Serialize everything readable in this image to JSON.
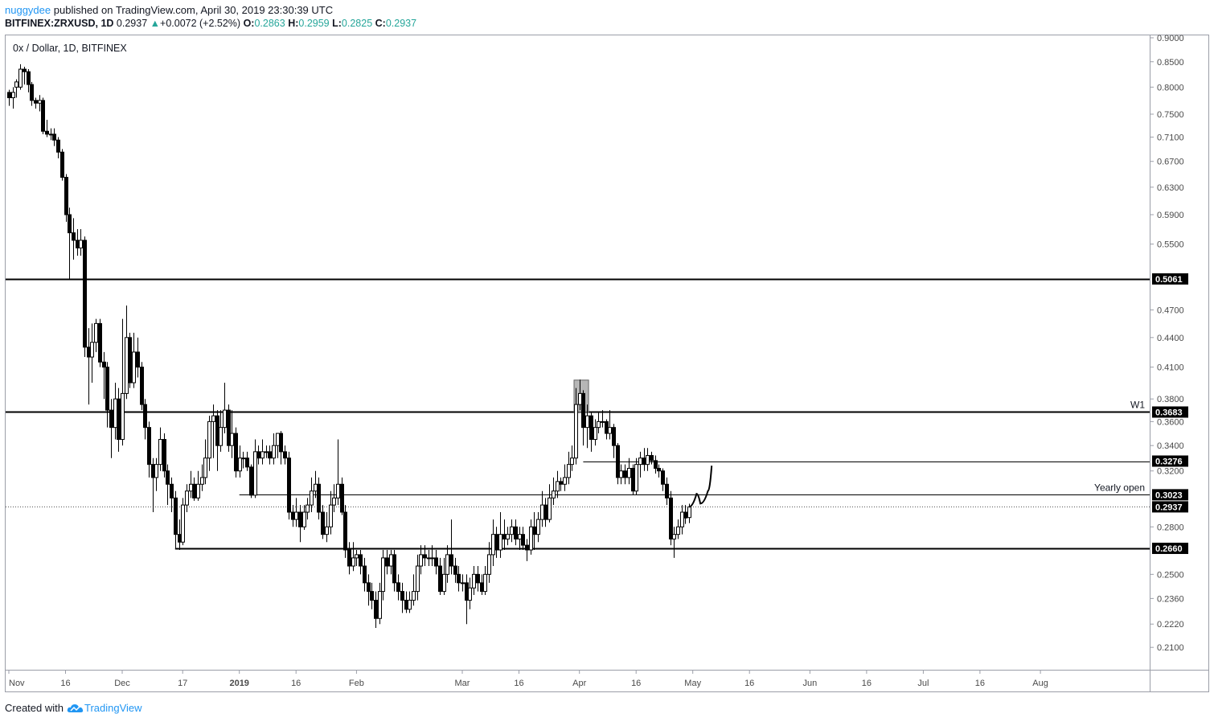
{
  "header": {
    "user": "nuggydee",
    "published_text": "published on TradingView.com, April 30, 2019 23:30:39 UTC",
    "symbol_line": "BITFINEX:ZRXUSD, 1D",
    "last": "0.2937",
    "change": "+0.0072 (+2.52%)",
    "o_label": "O:",
    "o_value": "0.2863",
    "h_label": "H:",
    "h_value": "0.2959",
    "l_label": "L:",
    "l_value": "0.2825",
    "c_label": "C:",
    "c_value": "0.2937"
  },
  "footer": {
    "created_with": "Created with",
    "brand": "TradingView"
  },
  "colors": {
    "line": "#000000",
    "grid": "#e0e3eb",
    "price_tag": "#000000",
    "highlight": "#9e9e9e",
    "brand": "#2196f3",
    "up": "#26a69a"
  },
  "chart_data": {
    "type": "candlestick",
    "title": "0x / Dollar, 1D, BITFINEX",
    "y_scale": "log",
    "y_range": [
      0.2045,
      0.9
    ],
    "y_ticks": [
      "0.9000",
      "0.8500",
      "0.8000",
      "0.7500",
      "0.7100",
      "0.6700",
      "0.6300",
      "0.5900",
      "0.5500",
      "0.4700",
      "0.4400",
      "0.4100",
      "0.3800",
      "0.3600",
      "0.3400",
      "0.3200",
      "0.2800",
      "0.2500",
      "0.2360",
      "0.2220",
      "0.2100"
    ],
    "x_ticks": [
      "Nov",
      "16",
      "Dec",
      "17",
      "2019",
      "16",
      "Feb",
      "Mar",
      "16",
      "Apr",
      "16",
      "May",
      "16",
      "Jun",
      "16",
      "Jul",
      "16",
      "Aug"
    ],
    "x_ticks_bold": [
      "2019"
    ],
    "x_range_days": [
      "2018-11-01",
      "2019-08-12"
    ],
    "levels": [
      {
        "value": 0.5061,
        "label": "0.5061",
        "style": "thick",
        "from_day": 0
      },
      {
        "value": 0.3683,
        "label": "0.3683",
        "style": "thick",
        "from_day": 0,
        "note": "W1"
      },
      {
        "value": 0.3276,
        "label": "0.3276",
        "style": "thin",
        "from_day": 152
      },
      {
        "value": 0.3023,
        "label": "0.3023",
        "style": "thin",
        "from_day": 61,
        "note": "Yearly open"
      },
      {
        "value": 0.2937,
        "label": "0.2937",
        "style": "dotted",
        "from_day": 0
      },
      {
        "value": 0.266,
        "label": "0.2660",
        "style": "thick",
        "from_day": 44
      }
    ],
    "highlight_box": {
      "day_from": 150,
      "day_to": 153,
      "low": 0.3683,
      "high": 0.3975
    },
    "projection": [
      [
        180,
        0.2937
      ],
      [
        182,
        0.303
      ],
      [
        183,
        0.296
      ],
      [
        185,
        0.305
      ],
      [
        186,
        0.324
      ]
    ],
    "candles": [
      [
        0,
        0.79,
        0.78,
        0.795,
        0.765
      ],
      [
        1,
        0.78,
        0.79,
        0.8,
        0.76
      ],
      [
        2,
        0.8,
        0.81,
        0.815,
        0.78
      ],
      [
        3,
        0.8,
        0.835,
        0.845,
        0.795
      ],
      [
        4,
        0.835,
        0.83,
        0.84,
        0.805
      ],
      [
        5,
        0.83,
        0.805,
        0.835,
        0.79
      ],
      [
        6,
        0.805,
        0.775,
        0.81,
        0.765
      ],
      [
        7,
        0.775,
        0.77,
        0.78,
        0.76
      ],
      [
        8,
        0.77,
        0.775,
        0.785,
        0.755
      ],
      [
        9,
        0.775,
        0.72,
        0.78,
        0.715
      ],
      [
        10,
        0.72,
        0.715,
        0.74,
        0.71
      ],
      [
        11,
        0.715,
        0.715,
        0.725,
        0.705
      ],
      [
        12,
        0.715,
        0.705,
        0.725,
        0.695
      ],
      [
        13,
        0.705,
        0.685,
        0.71,
        0.675
      ],
      [
        14,
        0.685,
        0.645,
        0.69,
        0.64
      ],
      [
        15,
        0.645,
        0.59,
        0.65,
        0.58
      ],
      [
        16,
        0.59,
        0.565,
        0.6,
        0.505
      ],
      [
        17,
        0.565,
        0.555,
        0.585,
        0.53
      ],
      [
        18,
        0.555,
        0.545,
        0.57,
        0.535
      ],
      [
        19,
        0.545,
        0.555,
        0.57,
        0.535
      ],
      [
        20,
        0.555,
        0.43,
        0.56,
        0.42
      ],
      [
        21,
        0.43,
        0.42,
        0.45,
        0.375
      ],
      [
        22,
        0.42,
        0.435,
        0.455,
        0.395
      ],
      [
        23,
        0.435,
        0.455,
        0.46,
        0.425
      ],
      [
        24,
        0.455,
        0.415,
        0.46,
        0.41
      ],
      [
        25,
        0.415,
        0.41,
        0.425,
        0.38
      ],
      [
        26,
        0.41,
        0.37,
        0.415,
        0.355
      ],
      [
        27,
        0.37,
        0.355,
        0.38,
        0.33
      ],
      [
        28,
        0.355,
        0.38,
        0.395,
        0.345
      ],
      [
        29,
        0.38,
        0.345,
        0.39,
        0.335
      ],
      [
        30,
        0.345,
        0.385,
        0.46,
        0.34
      ],
      [
        31,
        0.385,
        0.44,
        0.475,
        0.38
      ],
      [
        32,
        0.44,
        0.395,
        0.445,
        0.39
      ],
      [
        33,
        0.395,
        0.425,
        0.445,
        0.39
      ],
      [
        34,
        0.425,
        0.41,
        0.44,
        0.4
      ],
      [
        35,
        0.41,
        0.375,
        0.415,
        0.37
      ],
      [
        36,
        0.375,
        0.355,
        0.38,
        0.345
      ],
      [
        37,
        0.355,
        0.325,
        0.36,
        0.315
      ],
      [
        38,
        0.325,
        0.315,
        0.33,
        0.29
      ],
      [
        39,
        0.315,
        0.325,
        0.33,
        0.305
      ],
      [
        40,
        0.325,
        0.345,
        0.355,
        0.32
      ],
      [
        41,
        0.345,
        0.32,
        0.35,
        0.315
      ],
      [
        42,
        0.32,
        0.31,
        0.325,
        0.295
      ],
      [
        43,
        0.31,
        0.3,
        0.315,
        0.29
      ],
      [
        44,
        0.3,
        0.275,
        0.305,
        0.266
      ],
      [
        45,
        0.275,
        0.27,
        0.285,
        0.265
      ],
      [
        46,
        0.27,
        0.295,
        0.3,
        0.268
      ],
      [
        47,
        0.295,
        0.305,
        0.31,
        0.29
      ],
      [
        48,
        0.305,
        0.31,
        0.32,
        0.3
      ],
      [
        49,
        0.31,
        0.3,
        0.315,
        0.298
      ],
      [
        50,
        0.3,
        0.31,
        0.32,
        0.298
      ],
      [
        51,
        0.31,
        0.315,
        0.325,
        0.305
      ],
      [
        52,
        0.315,
        0.33,
        0.345,
        0.31
      ],
      [
        53,
        0.33,
        0.36,
        0.365,
        0.32
      ],
      [
        54,
        0.36,
        0.365,
        0.375,
        0.33
      ],
      [
        55,
        0.365,
        0.34,
        0.37,
        0.32
      ],
      [
        56,
        0.34,
        0.355,
        0.37,
        0.335
      ],
      [
        57,
        0.355,
        0.37,
        0.395,
        0.35
      ],
      [
        58,
        0.37,
        0.34,
        0.375,
        0.335
      ],
      [
        59,
        0.34,
        0.35,
        0.37,
        0.33
      ],
      [
        60,
        0.35,
        0.32,
        0.355,
        0.315
      ],
      [
        61,
        0.32,
        0.33,
        0.34,
        0.315
      ],
      [
        62,
        0.33,
        0.33,
        0.335,
        0.322
      ],
      [
        63,
        0.33,
        0.323,
        0.335,
        0.32
      ],
      [
        64,
        0.323,
        0.302,
        0.325,
        0.3
      ],
      [
        65,
        0.302,
        0.335,
        0.345,
        0.3
      ],
      [
        66,
        0.335,
        0.33,
        0.34,
        0.325
      ],
      [
        67,
        0.33,
        0.335,
        0.345,
        0.325
      ],
      [
        68,
        0.335,
        0.335,
        0.34,
        0.33
      ],
      [
        69,
        0.335,
        0.33,
        0.34,
        0.325
      ],
      [
        70,
        0.33,
        0.34,
        0.35,
        0.325
      ],
      [
        71,
        0.34,
        0.35,
        0.35,
        0.33
      ],
      [
        72,
        0.35,
        0.335,
        0.352,
        0.325
      ],
      [
        73,
        0.335,
        0.33,
        0.34,
        0.325
      ],
      [
        74,
        0.33,
        0.29,
        0.335,
        0.285
      ],
      [
        75,
        0.29,
        0.285,
        0.295,
        0.28
      ],
      [
        76,
        0.285,
        0.29,
        0.3,
        0.28
      ],
      [
        77,
        0.29,
        0.28,
        0.295,
        0.27
      ],
      [
        78,
        0.28,
        0.29,
        0.295,
        0.278
      ],
      [
        79,
        0.29,
        0.295,
        0.3,
        0.285
      ],
      [
        80,
        0.295,
        0.305,
        0.315,
        0.29
      ],
      [
        81,
        0.305,
        0.31,
        0.32,
        0.3
      ],
      [
        82,
        0.31,
        0.29,
        0.315,
        0.285
      ],
      [
        83,
        0.29,
        0.275,
        0.295,
        0.272
      ],
      [
        84,
        0.275,
        0.28,
        0.29,
        0.27
      ],
      [
        85,
        0.28,
        0.295,
        0.305,
        0.275
      ],
      [
        86,
        0.295,
        0.3,
        0.31,
        0.29
      ],
      [
        87,
        0.3,
        0.31,
        0.345,
        0.295
      ],
      [
        88,
        0.31,
        0.29,
        0.315,
        0.288
      ],
      [
        89,
        0.29,
        0.265,
        0.295,
        0.26
      ],
      [
        90,
        0.265,
        0.255,
        0.27,
        0.25
      ],
      [
        91,
        0.255,
        0.26,
        0.27,
        0.252
      ],
      [
        92,
        0.26,
        0.262,
        0.265,
        0.255
      ],
      [
        93,
        0.262,
        0.255,
        0.265,
        0.25
      ],
      [
        94,
        0.255,
        0.245,
        0.26,
        0.24
      ],
      [
        95,
        0.245,
        0.24,
        0.25,
        0.232
      ],
      [
        96,
        0.24,
        0.235,
        0.245,
        0.23
      ],
      [
        97,
        0.235,
        0.225,
        0.24,
        0.22
      ],
      [
        98,
        0.225,
        0.24,
        0.245,
        0.222
      ],
      [
        99,
        0.24,
        0.26,
        0.265,
        0.235
      ],
      [
        100,
        0.26,
        0.255,
        0.265,
        0.25
      ],
      [
        101,
        0.255,
        0.262,
        0.265,
        0.25
      ],
      [
        102,
        0.262,
        0.245,
        0.265,
        0.24
      ],
      [
        103,
        0.245,
        0.24,
        0.25,
        0.235
      ],
      [
        104,
        0.24,
        0.235,
        0.245,
        0.228
      ],
      [
        105,
        0.235,
        0.23,
        0.24,
        0.228
      ],
      [
        106,
        0.23,
        0.235,
        0.24,
        0.228
      ],
      [
        107,
        0.235,
        0.24,
        0.25,
        0.232
      ],
      [
        108,
        0.24,
        0.255,
        0.262,
        0.235
      ],
      [
        109,
        0.255,
        0.262,
        0.268,
        0.25
      ],
      [
        110,
        0.262,
        0.26,
        0.268,
        0.255
      ],
      [
        111,
        0.26,
        0.26,
        0.265,
        0.255
      ],
      [
        112,
        0.26,
        0.26,
        0.268,
        0.255
      ],
      [
        113,
        0.26,
        0.255,
        0.265,
        0.25
      ],
      [
        114,
        0.255,
        0.24,
        0.26,
        0.238
      ],
      [
        115,
        0.24,
        0.25,
        0.26,
        0.238
      ],
      [
        116,
        0.25,
        0.262,
        0.268,
        0.245
      ],
      [
        117,
        0.262,
        0.255,
        0.285,
        0.25
      ],
      [
        118,
        0.255,
        0.25,
        0.26,
        0.245
      ],
      [
        119,
        0.25,
        0.245,
        0.255,
        0.24
      ],
      [
        120,
        0.245,
        0.245,
        0.25,
        0.24
      ],
      [
        121,
        0.245,
        0.235,
        0.25,
        0.222
      ],
      [
        122,
        0.235,
        0.242,
        0.248,
        0.23
      ],
      [
        123,
        0.242,
        0.25,
        0.255,
        0.238
      ],
      [
        124,
        0.25,
        0.245,
        0.255,
        0.24
      ],
      [
        125,
        0.245,
        0.24,
        0.25,
        0.238
      ],
      [
        126,
        0.24,
        0.25,
        0.255,
        0.238
      ],
      [
        127,
        0.25,
        0.262,
        0.27,
        0.245
      ],
      [
        128,
        0.262,
        0.275,
        0.285,
        0.255
      ],
      [
        129,
        0.275,
        0.265,
        0.28,
        0.26
      ],
      [
        130,
        0.265,
        0.275,
        0.29,
        0.26
      ],
      [
        131,
        0.275,
        0.272,
        0.285,
        0.265
      ],
      [
        132,
        0.272,
        0.275,
        0.28,
        0.268
      ],
      [
        133,
        0.275,
        0.28,
        0.285,
        0.27
      ],
      [
        134,
        0.28,
        0.272,
        0.285,
        0.268
      ],
      [
        135,
        0.272,
        0.275,
        0.28,
        0.265
      ],
      [
        136,
        0.275,
        0.268,
        0.28,
        0.265
      ],
      [
        137,
        0.268,
        0.265,
        0.272,
        0.258
      ],
      [
        138,
        0.265,
        0.28,
        0.285,
        0.262
      ],
      [
        139,
        0.28,
        0.275,
        0.29,
        0.265
      ],
      [
        140,
        0.275,
        0.285,
        0.29,
        0.27
      ],
      [
        141,
        0.285,
        0.295,
        0.305,
        0.28
      ],
      [
        142,
        0.295,
        0.285,
        0.3,
        0.28
      ],
      [
        143,
        0.285,
        0.3,
        0.31,
        0.283
      ],
      [
        144,
        0.3,
        0.305,
        0.315,
        0.295
      ],
      [
        145,
        0.305,
        0.312,
        0.32,
        0.3
      ],
      [
        146,
        0.312,
        0.31,
        0.315,
        0.305
      ],
      [
        147,
        0.31,
        0.315,
        0.325,
        0.305
      ],
      [
        148,
        0.315,
        0.325,
        0.335,
        0.31
      ],
      [
        149,
        0.325,
        0.33,
        0.34,
        0.32
      ],
      [
        150,
        0.33,
        0.375,
        0.39,
        0.325
      ],
      [
        151,
        0.375,
        0.385,
        0.398,
        0.37
      ],
      [
        152,
        0.385,
        0.355,
        0.388,
        0.34
      ],
      [
        153,
        0.355,
        0.365,
        0.375,
        0.338
      ],
      [
        154,
        0.365,
        0.345,
        0.368,
        0.335
      ],
      [
        155,
        0.345,
        0.355,
        0.362,
        0.34
      ],
      [
        156,
        0.355,
        0.36,
        0.368,
        0.35
      ],
      [
        157,
        0.36,
        0.36,
        0.37,
        0.355
      ],
      [
        158,
        0.36,
        0.35,
        0.362,
        0.345
      ],
      [
        159,
        0.35,
        0.355,
        0.37,
        0.345
      ],
      [
        160,
        0.355,
        0.34,
        0.358,
        0.33
      ],
      [
        161,
        0.34,
        0.315,
        0.342,
        0.31
      ],
      [
        162,
        0.315,
        0.32,
        0.325,
        0.31
      ],
      [
        163,
        0.32,
        0.315,
        0.325,
        0.31
      ],
      [
        164,
        0.315,
        0.322,
        0.33,
        0.31
      ],
      [
        165,
        0.322,
        0.305,
        0.325,
        0.302
      ],
      [
        166,
        0.305,
        0.325,
        0.33,
        0.302
      ],
      [
        167,
        0.325,
        0.33,
        0.335,
        0.315
      ],
      [
        168,
        0.33,
        0.325,
        0.338,
        0.32
      ],
      [
        169,
        0.325,
        0.332,
        0.338,
        0.32
      ],
      [
        170,
        0.332,
        0.328,
        0.335,
        0.325
      ],
      [
        171,
        0.328,
        0.322,
        0.332,
        0.318
      ],
      [
        172,
        0.322,
        0.32,
        0.325,
        0.315
      ],
      [
        173,
        0.32,
        0.31,
        0.322,
        0.305
      ],
      [
        174,
        0.31,
        0.3,
        0.315,
        0.295
      ],
      [
        175,
        0.3,
        0.272,
        0.305,
        0.268
      ],
      [
        176,
        0.272,
        0.275,
        0.28,
        0.26
      ],
      [
        177,
        0.275,
        0.28,
        0.285,
        0.272
      ],
      [
        178,
        0.28,
        0.29,
        0.295,
        0.275
      ],
      [
        179,
        0.29,
        0.286,
        0.295,
        0.282
      ],
      [
        180,
        0.2863,
        0.2937,
        0.2959,
        0.2825
      ]
    ]
  }
}
